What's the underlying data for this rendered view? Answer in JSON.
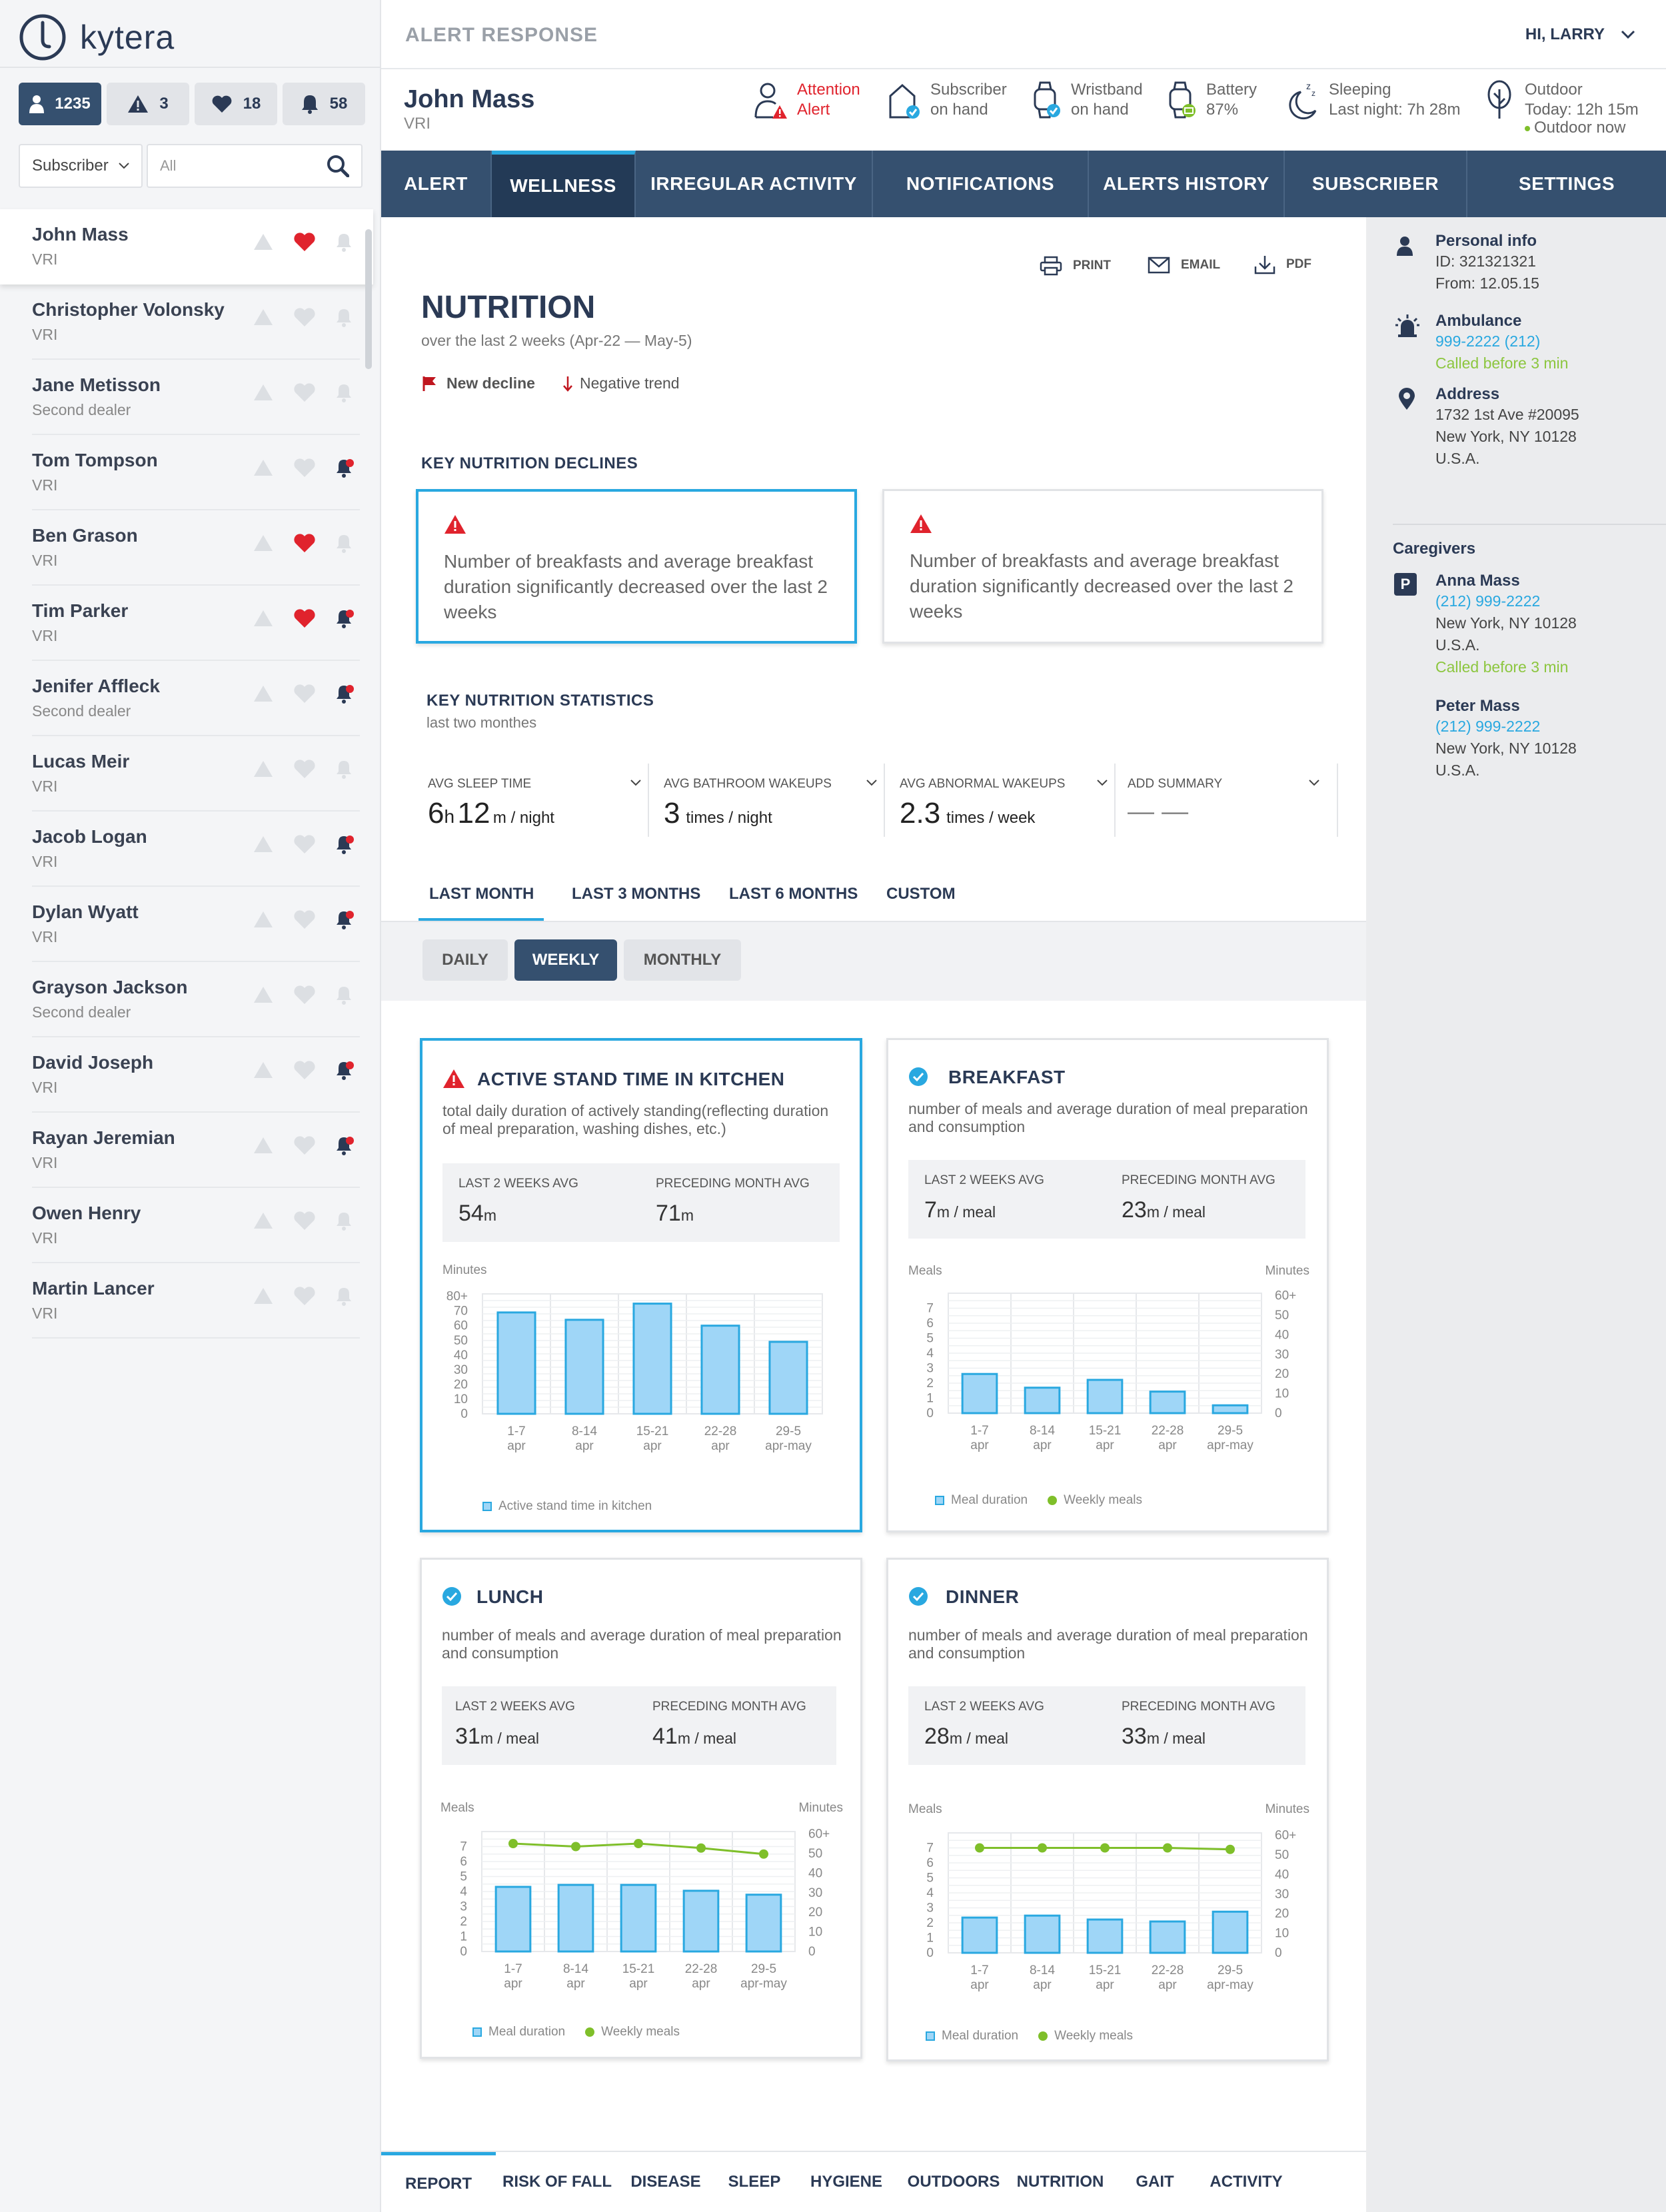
{
  "app": {
    "logo": "kytera",
    "title": "ALERT RESPONSE",
    "user_greeting": "HI, LARRY"
  },
  "colors": {
    "primary": "#35506f",
    "accent": "#29a8e0",
    "alert": "#e0232d",
    "good": "#7fbf2a"
  },
  "sidebar": {
    "counts": [
      {
        "icon": "person-icon",
        "value": "1235"
      },
      {
        "icon": "warning-icon",
        "value": "3"
      },
      {
        "icon": "heart-icon",
        "value": "18"
      },
      {
        "icon": "bell-icon",
        "value": "58"
      }
    ],
    "filter": {
      "select_value": "Subscriber",
      "search_value": "All"
    },
    "subscribers": [
      {
        "name": "John Mass",
        "role": "VRI",
        "heart": true,
        "bell": false
      },
      {
        "name": "Christopher Volonsky",
        "role": "VRI",
        "heart": false,
        "bell": false
      },
      {
        "name": "Jane Metisson",
        "role": "Second dealer",
        "heart": false,
        "bell": false
      },
      {
        "name": "Tom Tompson",
        "role": "VRI",
        "heart": false,
        "bell": true
      },
      {
        "name": "Ben Grason",
        "role": "VRI",
        "heart": true,
        "bell": false
      },
      {
        "name": "Tim Parker",
        "role": "VRI",
        "heart": true,
        "bell": true
      },
      {
        "name": "Jenifer Affleck",
        "role": "Second dealer",
        "heart": false,
        "bell": true
      },
      {
        "name": "Lucas Meir",
        "role": "VRI",
        "heart": false,
        "bell": false
      },
      {
        "name": "Jacob Logan",
        "role": "VRI",
        "heart": false,
        "bell": true
      },
      {
        "name": "Dylan Wyatt",
        "role": "VRI",
        "heart": false,
        "bell": true
      },
      {
        "name": "Grayson Jackson",
        "role": "Second dealer",
        "heart": false,
        "bell": false
      },
      {
        "name": "David Joseph",
        "role": "VRI",
        "heart": false,
        "bell": true
      },
      {
        "name": "Rayan Jeremian",
        "role": "VRI",
        "heart": false,
        "bell": true
      },
      {
        "name": "Owen Henry",
        "role": "VRI",
        "heart": false,
        "bell": false
      },
      {
        "name": "Martin Lancer",
        "role": "VRI",
        "heart": false,
        "bell": false
      }
    ]
  },
  "subject": {
    "name": "John Mass",
    "role": "VRI",
    "status": {
      "attention": {
        "l1": "Attention",
        "l2": "Alert"
      },
      "subscriber": {
        "l1": "Subscriber",
        "l2": "on hand"
      },
      "wristband": {
        "l1": "Wristband",
        "l2": "on hand"
      },
      "battery": {
        "l1": "Battery",
        "l2": "87%"
      },
      "sleeping": {
        "l1": "Sleeping",
        "l2": "Last night: 7h 28m"
      },
      "outdoor": {
        "l1": "Outdoor",
        "l2": "Today: 12h 15m",
        "l3": "Outdoor now"
      }
    }
  },
  "nav": [
    "ALERT",
    "WELLNESS",
    "IRREGULAR ACTIVITY",
    "NOTIFICATIONS",
    "ALERTS HISTORY",
    "SUBSCRIBER",
    "SETTINGS"
  ],
  "actions": {
    "print": "PRINT",
    "email": "EMAIL",
    "pdf": "PDF"
  },
  "page": {
    "title": "NUTRITION",
    "subtitle": "over the last 2 weeks  (Apr-22 — May-5)",
    "legend_decline": "New decline",
    "legend_trend": "Negative trend",
    "declines_title": "KEY NUTRITION DECLINES",
    "declines": [
      "Number of breakfasts and average breakfast duration significantly decreased over the last 2 weeks",
      "Number of breakfasts and average breakfast duration significantly decreased over the last 2 weeks"
    ],
    "stats_title": "KEY NUTRITION STATISTICS",
    "stats_sub": "last two monthes",
    "stats": [
      {
        "label": "AVG SLEEP TIME"
      },
      {
        "label": "AVG BATHROOM WAKEUPS",
        "value": "3",
        "unit": "times / night"
      },
      {
        "label": "AVG ABNORMAL WAKEUPS",
        "value": "2.3",
        "unit": "times / week"
      },
      {
        "label": "ADD SUMMARY",
        "value": "— —"
      }
    ],
    "sleep": {
      "h": "6",
      "hu": "h",
      "m": "12",
      "mu": "m / night"
    },
    "range_tabs": [
      "LAST MONTH",
      "LAST 3 MONTHS",
      "LAST 6 MONTHS",
      "CUSTOM"
    ],
    "period_pills": [
      "DAILY",
      "WEEKLY",
      "MONTHLY"
    ]
  },
  "charts": {
    "kitchen": {
      "title": "ACTIVE STAND TIME IN KITCHEN",
      "desc": "total daily duration of actively standing(reflecting duration of meal preparation, washing dishes, etc.)",
      "avg_label_1": "LAST 2 WEEKS AVG",
      "avg_value_1": "54",
      "avg_unit_1": "m",
      "avg_label_2": "PRECEDING MONTH AVG",
      "avg_value_2": "71",
      "avg_unit_2": "m",
      "left_axis": "Minutes",
      "legend_bar": "Active stand time in kitchen"
    },
    "breakfast": {
      "title": "BREAKFAST",
      "desc": "number of meals and average duration of meal preparation and consumption",
      "avg_label_1": "LAST 2 WEEKS AVG",
      "avg_value_1": "7",
      "avg_unit_1": "m / meal",
      "avg_label_2": "PRECEDING MONTH AVG",
      "avg_value_2": "23",
      "avg_unit_2": "m / meal",
      "left_axis": "Meals",
      "right_axis": "Minutes",
      "legend_bar": "Meal duration",
      "legend_line": "Weekly meals"
    },
    "lunch": {
      "title": "LUNCH",
      "desc": "number of meals and average duration of meal preparation and consumption",
      "avg_label_1": "LAST 2 WEEKS AVG",
      "avg_value_1": "31",
      "avg_unit_1": "m / meal",
      "avg_label_2": "PRECEDING MONTH AVG",
      "avg_value_2": "41",
      "avg_unit_2": "m / meal",
      "left_axis": "Meals",
      "right_axis": "Minutes",
      "legend_bar": "Meal duration",
      "legend_line": "Weekly meals"
    },
    "dinner": {
      "title": "DINNER",
      "desc": "number of meals and average duration of meal preparation and consumption",
      "avg_label_1": "LAST 2 WEEKS AVG",
      "avg_value_1": "28",
      "avg_unit_1": "m / meal",
      "avg_label_2": "PRECEDING MONTH AVG",
      "avg_value_2": "33",
      "avg_unit_2": "m / meal",
      "left_axis": "Meals",
      "right_axis": "Minutes",
      "legend_bar": "Meal duration",
      "legend_line": "Weekly meals"
    }
  },
  "chart_data": [
    {
      "id": "kitchen",
      "type": "bar",
      "categories": [
        [
          "1-7",
          "apr"
        ],
        [
          "8-14",
          "apr"
        ],
        [
          "15-21",
          "apr"
        ],
        [
          "22-28",
          "apr"
        ],
        [
          "29-5",
          "apr-may"
        ]
      ],
      "series": [
        {
          "name": "Active stand time in kitchen",
          "values": [
            69,
            64,
            75,
            60,
            49
          ]
        }
      ],
      "ylabel": "Minutes",
      "yticks": [
        "0",
        "10",
        "20",
        "30",
        "40",
        "50",
        "60",
        "70",
        "80+"
      ],
      "ylim": [
        0,
        80
      ]
    },
    {
      "id": "breakfast",
      "type": "bar",
      "categories": [
        [
          "1-7",
          "apr"
        ],
        [
          "8-14",
          "apr"
        ],
        [
          "15-21",
          "apr"
        ],
        [
          "22-28",
          "apr"
        ],
        [
          "29-5",
          "apr-may"
        ]
      ],
      "series": [
        {
          "name": "Meal duration",
          "values": [
            20,
            13,
            17,
            11,
            4
          ]
        }
      ],
      "ylabel": "Meals",
      "ylabel_right": "Minutes",
      "yticks": [
        "0",
        "1",
        "2",
        "3",
        "4",
        "5",
        "6",
        "7"
      ],
      "ylim": [
        0,
        8
      ],
      "yticks_right": [
        "0",
        "10",
        "20",
        "30",
        "40",
        "50",
        "60+"
      ],
      "ylim_right": [
        0,
        60
      ]
    },
    {
      "id": "lunch",
      "type": "bar",
      "categories": [
        [
          "1-7",
          "apr"
        ],
        [
          "8-14",
          "apr"
        ],
        [
          "15-21",
          "apr"
        ],
        [
          "22-28",
          "apr"
        ],
        [
          "29-5",
          "apr-may"
        ]
      ],
      "series": [
        {
          "name": "Meal duration",
          "values": [
            33,
            34,
            34,
            31,
            29
          ]
        },
        {
          "name": "Weekly meals",
          "values": [
            7.2,
            7.0,
            7.2,
            6.9,
            6.5
          ],
          "type": "line"
        }
      ],
      "ylabel": "Meals",
      "ylabel_right": "Minutes",
      "yticks": [
        "0",
        "1",
        "2",
        "3",
        "4",
        "5",
        "6",
        "7"
      ],
      "ylim": [
        0,
        8
      ],
      "yticks_right": [
        "0",
        "10",
        "20",
        "30",
        "40",
        "50",
        "60+"
      ],
      "ylim_right": [
        0,
        60
      ]
    },
    {
      "id": "dinner",
      "type": "bar",
      "categories": [
        [
          "1-7",
          "apr"
        ],
        [
          "8-14",
          "apr"
        ],
        [
          "15-21",
          "apr"
        ],
        [
          "22-28",
          "apr"
        ],
        [
          "29-5",
          "apr-may"
        ]
      ],
      "series": [
        {
          "name": "Meal duration",
          "values": [
            18,
            19,
            17,
            16,
            21
          ]
        },
        {
          "name": "Weekly meals",
          "values": [
            7.0,
            7.0,
            7.0,
            7.0,
            6.9
          ],
          "type": "line"
        }
      ],
      "ylabel": "Meals",
      "ylabel_right": "Minutes",
      "yticks": [
        "0",
        "1",
        "2",
        "3",
        "4",
        "5",
        "6",
        "7"
      ],
      "ylim": [
        0,
        8
      ],
      "yticks_right": [
        "0",
        "10",
        "20",
        "30",
        "40",
        "50",
        "60+"
      ],
      "ylim_right": [
        0,
        60
      ]
    }
  ],
  "right_panel": {
    "personal": {
      "title": "Personal info",
      "id": "ID: 321321321",
      "from": "From: 12.05.15"
    },
    "ambulance": {
      "title": "Ambulance",
      "phone": "999-2222 (212)",
      "called": "Called before 3 min"
    },
    "address": {
      "title": "Address",
      "l1": "1732 1st Ave #20095",
      "l2": "New York, NY 10128",
      "l3": "U.S.A."
    },
    "caregivers_title": "Caregivers",
    "caregivers": [
      {
        "badge": "P",
        "name": "Anna Mass",
        "phone": "(212) 999-2222",
        "l1": "New York, NY 10128",
        "l2": "U.S.A.",
        "called": "Called before 3 min"
      },
      {
        "name": "Peter Mass",
        "phone": "(212) 999-2222",
        "l1": "New York, NY 10128",
        "l2": "U.S.A."
      }
    ]
  },
  "bottom_nav": [
    "REPORT",
    "RISK OF FALL",
    "DISEASE",
    "SLEEP",
    "HYGIENE",
    "OUTDOORS",
    "NUTRITION",
    "GAIT",
    "ACTIVITY"
  ]
}
